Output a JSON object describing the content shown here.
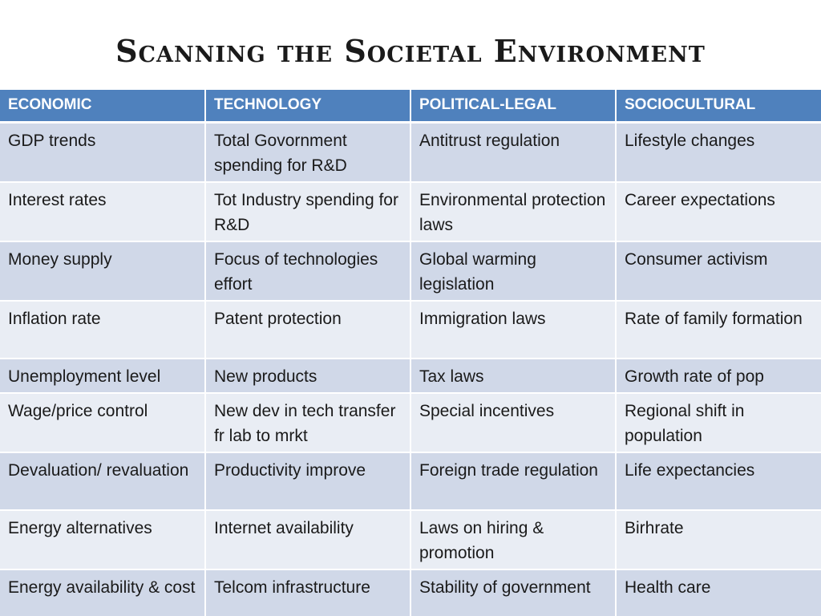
{
  "title": "Scanning the Societal Environment",
  "table": {
    "headers": [
      "ECONOMIC",
      "TECHNOLOGY",
      "POLITICAL-LEGAL",
      "SOCIOCULTURAL"
    ],
    "rows": [
      [
        "GDP trends",
        "Total Govornment spending for R&D",
        "Antitrust regulation",
        "Lifestyle changes"
      ],
      [
        "Interest rates",
        "Tot Industry spending for R&D",
        "Environmental protection laws",
        "Career expectations"
      ],
      [
        "Money supply",
        "Focus of technologies effort",
        "Global warming legislation",
        "Consumer activism"
      ],
      [
        "Inflation rate",
        "Patent protection",
        "Immigration laws",
        "Rate of family formation"
      ],
      [
        "Unemployment level",
        "New products",
        "Tax laws",
        "Growth rate of pop"
      ],
      [
        "Wage/price control",
        "New dev in tech transfer fr lab to mrkt",
        "Special incentives",
        "Regional shift in population"
      ],
      [
        "Devaluation/ revaluation",
        "Productivity improve",
        "Foreign trade regulation",
        "Life expectancies"
      ],
      [
        "Energy alternatives",
        "Internet availability",
        "Laws on hiring & promotion",
        "Birhrate"
      ],
      [
        "Energy availability & cost",
        "Telcom infrastructure",
        "Stability of government",
        "Health care"
      ]
    ]
  },
  "colors": {
    "header_bg": "#4f81bd",
    "row_odd_bg": "#d0d8e8",
    "row_even_bg": "#e9edf4"
  }
}
